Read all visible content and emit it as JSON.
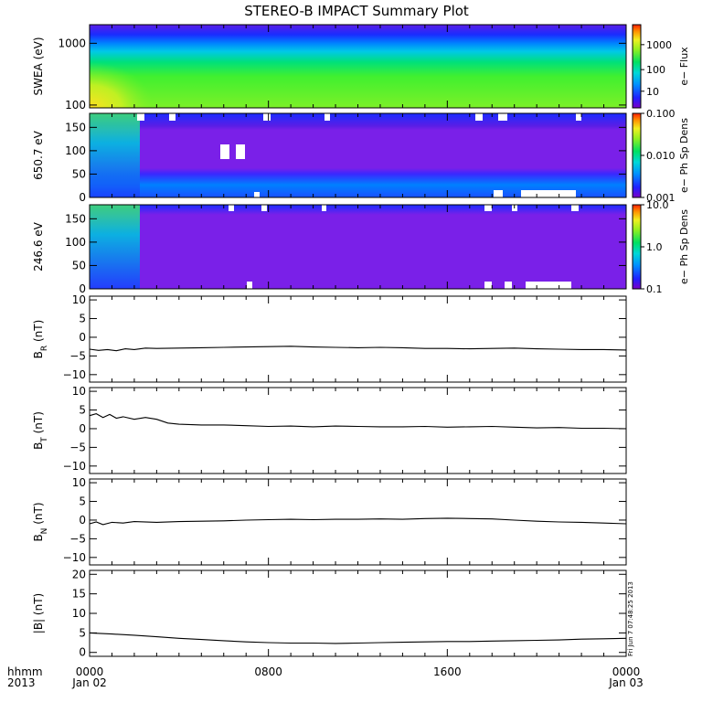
{
  "title": "STEREO-B IMPACT Summary Plot",
  "stamp": "Fri Jun  7 07:48:25 2013",
  "colors": {
    "spectrogram": [
      "#7a00c8",
      "#5a1ee6",
      "#1a2cff",
      "#0080ff",
      "#00c8e8",
      "#00e07a",
      "#40f030",
      "#a8f020",
      "#e8f020",
      "#ffb000",
      "#ff3000"
    ]
  },
  "chart_data": [
    {
      "id": "swea",
      "type": "heatmap",
      "ylabel": "SWEA (eV)",
      "colorbar_label": "e− Flux",
      "log_y": true,
      "ylim": [
        90,
        2000
      ],
      "yticks": [
        {
          "v": 100,
          "label": "100"
        },
        {
          "v": 1000,
          "label": "1000"
        }
      ],
      "colorbar_ticks": [
        {
          "f": 0.2,
          "label": "10"
        },
        {
          "f": 0.46,
          "label": "100"
        },
        {
          "f": 0.76,
          "label": "1000"
        }
      ],
      "color_levels": [
        0,
        0.05,
        0.15,
        0.27,
        0.42,
        0.55,
        0.65,
        0.72,
        0.8,
        0.88,
        1.0
      ]
    },
    {
      "id": "pad650",
      "type": "heatmap",
      "ylabel": "650.7 eV",
      "colorbar_label": "e− Ph Sp Dens",
      "ylim": [
        0,
        180
      ],
      "yticks": [
        {
          "v": 0,
          "label": "0"
        },
        {
          "v": 50,
          "label": "50"
        },
        {
          "v": 100,
          "label": "100"
        },
        {
          "v": 150,
          "label": "150"
        }
      ],
      "colorbar_ticks": [
        {
          "f": 0.0,
          "label": "0.001"
        },
        {
          "f": 0.5,
          "label": "0.010"
        },
        {
          "f": 1.0,
          "label": "0.100"
        }
      ]
    },
    {
      "id": "pad246",
      "type": "heatmap",
      "ylabel": "246.6 eV",
      "colorbar_label": "e− Ph Sp Dens",
      "ylim": [
        0,
        180
      ],
      "yticks": [
        {
          "v": 0,
          "label": "0"
        },
        {
          "v": 50,
          "label": "50"
        },
        {
          "v": 100,
          "label": "100"
        },
        {
          "v": 150,
          "label": "150"
        }
      ],
      "colorbar_ticks": [
        {
          "f": 0.0,
          "label": "0.1"
        },
        {
          "f": 0.5,
          "label": "1.0"
        },
        {
          "f": 1.0,
          "label": "10.0"
        }
      ]
    },
    {
      "id": "br",
      "type": "line",
      "ylabel": "B",
      "ylabel_sub": "R",
      "ylabel_unit": " (nT)",
      "ylim": [
        -12,
        11
      ],
      "yticks": [
        {
          "v": -10,
          "label": "−10"
        },
        {
          "v": -5,
          "label": "−5"
        },
        {
          "v": 0,
          "label": "0"
        },
        {
          "v": 5,
          "label": "5"
        },
        {
          "v": 10,
          "label": "10"
        }
      ],
      "x": [
        0,
        0.4,
        0.8,
        1.2,
        1.6,
        2,
        2.5,
        3,
        4,
        5,
        6,
        7,
        8,
        9,
        10,
        11,
        12,
        13,
        14,
        15,
        16,
        17,
        18,
        19,
        20,
        21,
        22,
        23,
        24
      ],
      "values": [
        -3.2,
        -3.5,
        -3.3,
        -3.6,
        -3.1,
        -3.3,
        -2.9,
        -3.0,
        -2.9,
        -2.8,
        -2.7,
        -2.6,
        -2.5,
        -2.4,
        -2.6,
        -2.7,
        -2.8,
        -2.7,
        -2.8,
        -3.0,
        -3.0,
        -3.1,
        -3.0,
        -2.9,
        -3.1,
        -3.2,
        -3.3,
        -3.3,
        -3.4
      ]
    },
    {
      "id": "bt",
      "type": "line",
      "ylabel": "B",
      "ylabel_sub": "T",
      "ylabel_unit": " (nT)",
      "ylim": [
        -12,
        11
      ],
      "yticks": [
        {
          "v": -10,
          "label": "−10"
        },
        {
          "v": -5,
          "label": "−5"
        },
        {
          "v": 0,
          "label": "0"
        },
        {
          "v": 5,
          "label": "5"
        },
        {
          "v": 10,
          "label": "10"
        }
      ],
      "x": [
        0,
        0.3,
        0.6,
        0.9,
        1.2,
        1.5,
        2,
        2.5,
        3,
        3.5,
        4,
        5,
        6,
        7,
        8,
        9,
        10,
        11,
        12,
        13,
        14,
        15,
        16,
        17,
        18,
        19,
        20,
        21,
        22,
        23,
        24
      ],
      "values": [
        3.5,
        4.0,
        3.0,
        3.8,
        2.8,
        3.2,
        2.5,
        3.0,
        2.5,
        1.5,
        1.2,
        1.0,
        1.0,
        0.8,
        0.6,
        0.7,
        0.5,
        0.7,
        0.6,
        0.5,
        0.5,
        0.6,
        0.4,
        0.5,
        0.6,
        0.4,
        0.2,
        0.3,
        0.1,
        0.1,
        0.0
      ]
    },
    {
      "id": "bn",
      "type": "line",
      "ylabel": "B",
      "ylabel_sub": "N",
      "ylabel_unit": " (nT)",
      "ylim": [
        -12,
        11
      ],
      "yticks": [
        {
          "v": -10,
          "label": "−10"
        },
        {
          "v": -5,
          "label": "−5"
        },
        {
          "v": 0,
          "label": "0"
        },
        {
          "v": 5,
          "label": "5"
        },
        {
          "v": 10,
          "label": "10"
        }
      ],
      "x": [
        0,
        0.3,
        0.6,
        1,
        1.5,
        2,
        3,
        4,
        5,
        6,
        7,
        8,
        9,
        10,
        11,
        12,
        13,
        14,
        15,
        16,
        17,
        18,
        19,
        20,
        21,
        22,
        23,
        24
      ],
      "values": [
        -1.0,
        -0.5,
        -1.2,
        -0.6,
        -0.8,
        -0.4,
        -0.6,
        -0.4,
        -0.3,
        -0.2,
        0.0,
        0.1,
        0.2,
        0.1,
        0.2,
        0.2,
        0.3,
        0.2,
        0.4,
        0.5,
        0.4,
        0.3,
        0.0,
        -0.3,
        -0.5,
        -0.6,
        -0.8,
        -1.0
      ]
    },
    {
      "id": "bmag",
      "type": "line",
      "ylabel": "|B| (nT)",
      "ylim": [
        -1,
        21
      ],
      "yticks": [
        {
          "v": 0,
          "label": "0"
        },
        {
          "v": 5,
          "label": "5"
        },
        {
          "v": 10,
          "label": "10"
        },
        {
          "v": 15,
          "label": "15"
        },
        {
          "v": 20,
          "label": "20"
        }
      ],
      "x": [
        0,
        1,
        2,
        3,
        4,
        5,
        6,
        7,
        8,
        9,
        10,
        11,
        12,
        13,
        14,
        15,
        16,
        17,
        18,
        19,
        20,
        21,
        22,
        23,
        24
      ],
      "values": [
        5.0,
        4.7,
        4.4,
        4.0,
        3.6,
        3.3,
        3.0,
        2.7,
        2.5,
        2.4,
        2.4,
        2.3,
        2.4,
        2.5,
        2.6,
        2.7,
        2.8,
        2.8,
        2.9,
        3.0,
        3.1,
        3.2,
        3.4,
        3.5,
        3.6
      ]
    }
  ],
  "xaxis": {
    "left_label_top": "hhmm",
    "left_label_bottom": "2013",
    "ticks": [
      {
        "x": 0,
        "top": "0000",
        "bottom": "Jan 02"
      },
      {
        "x": 8,
        "top": "0800",
        "bottom": ""
      },
      {
        "x": 16,
        "top": "1600",
        "bottom": ""
      },
      {
        "x": 24,
        "top": "0000",
        "bottom": "Jan 03"
      }
    ],
    "xlim": [
      0,
      24
    ]
  }
}
